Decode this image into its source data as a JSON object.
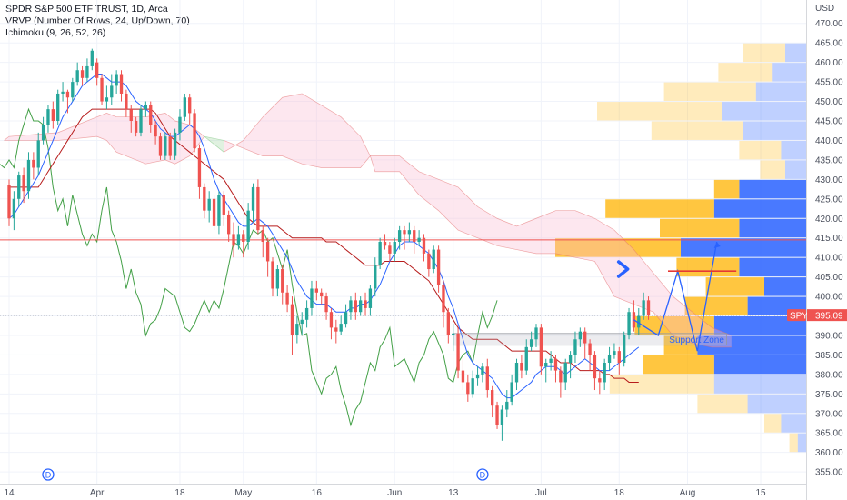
{
  "header": {
    "symbol_line": "SPDR S&P 500 ETF TRUST, 1D, Arca",
    "indicator_vrvp": "VRVP (Number Of Rows, 24, Up/Down, 70)",
    "indicator_ichimoku": "Ichimoku (9, 26, 52, 26)"
  },
  "colors": {
    "up": "#26a69a",
    "down": "#ef5350",
    "tenkan": "#2962ff",
    "kijun": "#b71c1c",
    "chikou": "#43a047",
    "cloud_bull": "#a5d6a7",
    "cloud_bear": "#f8bbd0",
    "vp_up": "#2962ff",
    "vp_down": "#ffb300",
    "arrow": "#2962ff",
    "price_line": "#ef5350",
    "current_price_tag": "#ef5350"
  },
  "chart_data": {
    "type": "candlestick",
    "currency_label": "USD",
    "ylim": [
      352,
      476
    ],
    "y_ticks": [
      355,
      360,
      365,
      370,
      375,
      380,
      385,
      390,
      395,
      400,
      405,
      410,
      415,
      420,
      425,
      430,
      435,
      440,
      445,
      450,
      455,
      460,
      465,
      470
    ],
    "x_ticks": [
      {
        "label": "14",
        "day": 0
      },
      {
        "label": "Apr",
        "day": 18
      },
      {
        "label": "18",
        "day": 35
      },
      {
        "label": "May",
        "day": 48
      },
      {
        "label": "16",
        "day": 63
      },
      {
        "label": "Jun",
        "day": 79
      },
      {
        "label": "13",
        "day": 91
      },
      {
        "label": "Jul",
        "day": 109
      },
      {
        "label": "18",
        "day": 125
      },
      {
        "label": "Aug",
        "day": 139
      },
      {
        "label": "15",
        "day": 154
      }
    ],
    "dividend_markers": [
      {
        "label": "D",
        "day": 8
      },
      {
        "label": "D",
        "day": 97
      }
    ],
    "current_price": {
      "symbol": "SPY",
      "value": "395.09"
    },
    "horizontal_line": 414.5,
    "support_zone": {
      "label": "Support Zone",
      "top": 390.5,
      "bottom": 387.5,
      "start_day": 91,
      "end_day": 147
    },
    "projected_path": [
      [
        128,
        394
      ],
      [
        133,
        390
      ],
      [
        137,
        406.5
      ],
      [
        141,
        386
      ],
      [
        145,
        414
      ]
    ],
    "resistance_segment": {
      "value": 406.5,
      "start_day": 135,
      "end_day": 149
    },
    "arrow_marker": {
      "day": 126,
      "value": 407
    },
    "candles": [
      [
        428.5,
        420,
        430,
        418
      ],
      [
        420,
        425,
        427,
        417
      ],
      [
        425,
        431,
        432,
        423
      ],
      [
        431,
        427,
        433,
        424
      ],
      [
        427,
        435,
        437,
        425
      ],
      [
        435,
        433,
        437,
        430
      ],
      [
        433,
        440,
        442,
        431
      ],
      [
        440,
        444,
        446,
        439
      ],
      [
        444,
        448,
        449,
        442
      ],
      [
        448,
        445,
        450,
        443
      ],
      [
        445,
        452,
        453,
        444
      ],
      [
        452,
        452.5,
        455,
        450
      ],
      [
        452.5,
        451,
        453,
        447
      ],
      [
        451,
        455,
        456,
        450
      ],
      [
        455,
        458,
        460,
        454
      ],
      [
        458,
        456,
        459,
        454
      ],
      [
        456,
        459,
        461,
        455
      ],
      [
        459,
        463,
        463.5,
        458
      ],
      [
        460,
        456,
        461,
        454
      ],
      [
        456,
        450,
        457,
        449
      ],
      [
        450,
        451,
        454,
        448
      ],
      [
        451,
        454,
        457,
        449
      ],
      [
        454,
        457,
        458,
        452
      ],
      [
        457,
        452,
        458,
        450
      ],
      [
        452,
        448,
        453,
        446
      ],
      [
        448,
        445,
        449,
        442
      ],
      [
        445,
        442,
        446,
        441
      ],
      [
        442,
        448,
        449,
        441
      ],
      [
        448,
        449,
        450,
        446
      ],
      [
        449,
        444,
        450,
        442
      ],
      [
        444,
        441,
        445,
        439
      ],
      [
        441,
        436,
        442,
        435
      ],
      [
        436,
        441,
        442,
        435
      ],
      [
        441,
        436,
        442,
        435
      ],
      [
        436,
        442,
        443,
        435
      ],
      [
        442,
        446,
        448,
        440
      ],
      [
        446,
        451,
        452,
        445
      ],
      [
        451,
        447,
        452,
        444
      ],
      [
        447,
        438,
        448,
        437
      ],
      [
        438,
        428,
        439,
        425
      ],
      [
        428,
        422,
        429,
        420
      ],
      [
        422,
        425,
        427,
        419
      ],
      [
        425,
        418,
        426,
        417
      ],
      [
        418,
        426,
        427,
        416
      ],
      [
        426,
        421,
        427,
        418
      ],
      [
        421,
        416,
        422,
        414
      ],
      [
        416,
        413,
        419,
        410
      ],
      [
        413,
        416,
        418,
        412
      ],
      [
        416,
        414,
        417,
        410
      ],
      [
        414,
        422,
        424,
        412
      ],
      [
        422,
        428,
        429,
        419
      ],
      [
        428,
        417,
        430,
        416
      ],
      [
        417,
        414,
        418,
        410
      ],
      [
        414,
        409,
        415,
        405
      ],
      [
        409,
        402,
        410,
        400
      ],
      [
        402,
        407,
        408,
        400
      ],
      [
        407,
        401,
        408,
        398
      ],
      [
        401,
        398,
        403,
        396
      ],
      [
        398,
        390,
        400,
        385
      ],
      [
        390,
        393,
        395,
        388
      ],
      [
        393,
        394,
        396,
        390
      ],
      [
        394,
        397,
        399,
        392
      ],
      [
        397,
        402,
        404,
        395
      ],
      [
        402,
        401,
        404,
        399
      ],
      [
        401,
        400,
        402,
        398
      ],
      [
        400,
        396,
        401,
        394
      ],
      [
        396,
        392,
        397,
        389
      ],
      [
        392,
        391,
        394,
        388
      ],
      [
        391,
        393,
        395,
        390
      ],
      [
        393,
        396,
        398,
        392
      ],
      [
        396,
        399,
        400,
        394
      ],
      [
        399,
        396,
        401,
        394
      ],
      [
        396,
        399,
        400,
        395
      ],
      [
        399,
        397,
        401,
        395
      ],
      [
        397,
        402,
        403,
        395
      ],
      [
        402,
        408,
        410,
        400
      ],
      [
        408,
        414,
        415,
        407
      ],
      [
        414,
        413,
        416,
        412
      ],
      [
        413,
        411,
        414,
        409
      ],
      [
        411,
        414,
        415,
        409
      ],
      [
        414,
        417,
        418,
        412
      ],
      [
        417,
        416,
        418,
        412
      ],
      [
        416,
        417,
        419,
        414
      ],
      [
        417,
        414,
        418,
        411
      ],
      [
        414,
        415,
        417,
        413
      ],
      [
        415,
        411,
        416,
        409
      ],
      [
        411,
        407,
        412,
        405
      ],
      [
        407,
        412,
        413,
        406
      ],
      [
        412,
        403,
        413,
        401
      ],
      [
        403,
        396,
        404,
        392
      ],
      [
        396,
        390,
        397,
        388
      ],
      [
        390,
        390.5,
        393,
        386
      ],
      [
        390.5,
        381,
        392,
        379
      ],
      [
        381,
        378,
        384,
        376
      ],
      [
        378,
        375,
        380,
        373
      ],
      [
        375,
        379,
        381,
        374
      ],
      [
        379,
        380,
        382,
        377
      ],
      [
        380,
        382,
        383,
        378
      ],
      [
        382,
        376,
        384,
        374
      ],
      [
        376,
        372,
        377,
        369
      ],
      [
        372,
        367,
        373,
        366
      ],
      [
        367,
        371,
        372,
        363
      ],
      [
        371,
        373,
        376,
        369
      ],
      [
        373,
        378,
        380,
        372
      ],
      [
        378,
        383,
        384,
        376
      ],
      [
        383,
        381,
        385,
        379
      ],
      [
        381,
        387,
        389,
        380
      ],
      [
        387,
        389,
        391,
        386
      ],
      [
        389,
        392,
        393,
        387
      ],
      [
        392,
        382,
        393,
        380
      ],
      [
        382,
        383,
        384,
        378
      ],
      [
        383,
        384,
        386,
        381
      ],
      [
        384,
        381,
        385,
        378
      ],
      [
        381,
        378,
        382,
        374
      ],
      [
        378,
        383,
        384,
        376
      ],
      [
        383,
        385,
        386,
        379
      ],
      [
        385,
        389,
        391,
        383
      ],
      [
        389,
        391,
        392,
        387
      ],
      [
        391,
        388,
        392,
        384
      ],
      [
        388,
        385,
        389,
        381
      ],
      [
        385,
        379,
        386,
        376
      ],
      [
        379,
        378,
        381,
        375
      ],
      [
        378,
        383,
        384,
        376
      ],
      [
        383,
        385,
        387,
        381
      ],
      [
        385,
        386,
        388,
        384
      ],
      [
        386,
        383,
        387,
        380
      ],
      [
        383,
        390,
        391,
        382
      ],
      [
        390,
        396,
        397,
        389
      ],
      [
        396,
        392,
        399,
        391
      ],
      [
        392,
        395,
        397,
        390
      ],
      [
        395,
        399,
        401,
        394
      ],
      [
        399,
        395.09,
        400,
        394
      ]
    ],
    "tenkan": [
      420,
      421,
      423,
      425,
      427,
      429,
      431,
      434,
      437,
      440,
      443,
      446,
      448,
      450,
      452,
      454,
      455,
      456,
      457,
      457,
      456,
      455,
      455,
      455,
      454,
      452,
      450,
      449,
      448,
      447,
      445,
      443,
      442,
      441,
      441,
      442,
      443,
      444,
      443,
      441,
      438,
      434,
      430,
      427,
      425,
      423,
      421,
      419,
      418,
      418,
      419,
      420,
      419,
      418,
      416,
      414,
      412,
      410,
      407,
      404,
      402,
      400,
      399,
      398,
      398,
      398,
      397,
      396,
      396,
      396,
      397,
      397,
      398,
      398,
      399,
      401,
      403,
      406,
      409,
      411,
      413,
      414,
      414,
      414,
      413,
      412,
      411,
      409,
      407,
      404,
      400,
      397,
      393,
      389,
      385,
      383,
      382,
      381,
      380,
      379,
      377,
      375,
      374,
      374,
      375,
      376,
      377,
      378,
      380,
      381,
      382,
      382,
      382,
      381,
      380,
      381,
      382,
      383,
      384,
      383,
      382,
      381,
      381,
      381,
      382,
      383,
      384,
      385,
      386,
      387
    ],
    "kijun": [
      428,
      428,
      428,
      428,
      428,
      428,
      428,
      430,
      432,
      434,
      436,
      438,
      440,
      442,
      444,
      446,
      447,
      448,
      448,
      448,
      448,
      448,
      448,
      448,
      448,
      448,
      448,
      448,
      448,
      448,
      447,
      445,
      443,
      441,
      440,
      439,
      438,
      437,
      436,
      435,
      434,
      433,
      432,
      431,
      430,
      428,
      426,
      424,
      422,
      420,
      419,
      418,
      418,
      418,
      418,
      418,
      417,
      416,
      415,
      415,
      415,
      415,
      415,
      415,
      415,
      414,
      414,
      414,
      413,
      412,
      411,
      410,
      409,
      408,
      408,
      408,
      408,
      409,
      409,
      409,
      409,
      409,
      408,
      407,
      406,
      405,
      404,
      402,
      400,
      398,
      396,
      394,
      392,
      391,
      390,
      389,
      389,
      389,
      389,
      389,
      389,
      388,
      387,
      386,
      386,
      386,
      386,
      386,
      386,
      386,
      386,
      385,
      384,
      383,
      383,
      383,
      382,
      381,
      381,
      381,
      381,
      381,
      380,
      380,
      379,
      379,
      379,
      378,
      378,
      378
    ],
    "chikou": [
      430,
      432,
      434,
      433,
      435,
      433,
      440,
      444,
      448,
      445,
      445,
      444,
      438,
      428,
      422,
      425,
      418,
      426,
      421,
      416,
      413,
      416,
      414,
      422,
      428,
      417,
      414,
      409,
      402,
      407,
      401,
      398,
      390,
      393,
      394,
      397,
      402,
      401,
      400,
      396,
      392,
      391,
      393,
      396,
      399,
      396,
      399,
      397,
      402,
      408,
      414,
      413,
      411,
      414,
      417,
      416,
      417,
      414,
      415,
      411,
      407,
      412,
      403,
      396,
      390,
      390.5,
      381,
      378,
      375,
      379,
      380,
      382,
      376,
      372,
      367,
      371,
      373,
      378,
      383,
      381,
      387,
      389,
      392,
      382,
      383,
      384,
      381,
      378,
      383,
      385,
      389,
      391,
      388,
      385,
      379,
      378,
      383,
      385,
      386,
      383,
      390,
      396,
      392,
      395,
      399
    ],
    "cloud": [
      [
        -1,
        440,
        440
      ],
      [
        0,
        441,
        440
      ],
      [
        10,
        442,
        440
      ],
      [
        18,
        446,
        441
      ],
      [
        20,
        447,
        440
      ],
      [
        22,
        446,
        437
      ],
      [
        28,
        446,
        434
      ],
      [
        32,
        447,
        435
      ],
      [
        34,
        445,
        434
      ],
      [
        37,
        444,
        436
      ],
      [
        40,
        441,
        441
      ],
      [
        44,
        437,
        440
      ],
      [
        48,
        440,
        438
      ],
      [
        52,
        446,
        436
      ],
      [
        56,
        451,
        436
      ],
      [
        60,
        452,
        434
      ],
      [
        64,
        449,
        433
      ],
      [
        68,
        446,
        433
      ],
      [
        72,
        441,
        433
      ],
      [
        74,
        436,
        436
      ],
      [
        75,
        436,
        432
      ],
      [
        80,
        436,
        432
      ],
      [
        84,
        432,
        426
      ],
      [
        88,
        430,
        422
      ],
      [
        92,
        428,
        417
      ],
      [
        96,
        423,
        415
      ],
      [
        100,
        420,
        413
      ],
      [
        104,
        418,
        412
      ],
      [
        108,
        420,
        411
      ],
      [
        112,
        422,
        411
      ],
      [
        116,
        422,
        410
      ],
      [
        120,
        420,
        409
      ],
      [
        124,
        417,
        400
      ],
      [
        128,
        412,
        398
      ],
      [
        132,
        406,
        396
      ],
      [
        136,
        400,
        390
      ],
      [
        140,
        396,
        388
      ],
      [
        144,
        392,
        387
      ],
      [
        148,
        390,
        387
      ]
    ],
    "volume_profile": [
      {
        "price": 462.5,
        "up": 5,
        "down": 10,
        "faded": true
      },
      {
        "price": 457.5,
        "up": 8,
        "down": 13,
        "faded": true
      },
      {
        "price": 452.5,
        "up": 12,
        "down": 22,
        "faded": true
      },
      {
        "price": 447.5,
        "up": 20,
        "down": 30,
        "faded": true
      },
      {
        "price": 442.5,
        "up": 15,
        "down": 22,
        "faded": true
      },
      {
        "price": 437.5,
        "up": 6,
        "down": 10,
        "faded": true
      },
      {
        "price": 432.5,
        "up": 5,
        "down": 6,
        "faded": true
      },
      {
        "price": 427.5,
        "up": 16,
        "down": 6,
        "faded": false
      },
      {
        "price": 422.5,
        "up": 22,
        "down": 26,
        "faded": false
      },
      {
        "price": 417.5,
        "up": 16,
        "down": 19,
        "faded": false
      },
      {
        "price": 412.5,
        "up": 30,
        "down": 30,
        "faded": false
      },
      {
        "price": 407.5,
        "up": 16,
        "down": 15,
        "faded": false
      },
      {
        "price": 402.5,
        "up": 10,
        "down": 14,
        "faded": false
      },
      {
        "price": 397.5,
        "up": 14,
        "down": 15,
        "faded": false
      },
      {
        "price": 392.5,
        "up": 22,
        "down": 19,
        "faded": false
      },
      {
        "price": 387.5,
        "up": 26,
        "down": 8,
        "faded": false
      },
      {
        "price": 382.5,
        "up": 22,
        "down": 17,
        "faded": false
      },
      {
        "price": 377.5,
        "up": 22,
        "down": 25,
        "faded": true
      },
      {
        "price": 372.5,
        "up": 14,
        "down": 12,
        "faded": true
      },
      {
        "price": 367.5,
        "up": 6,
        "down": 4,
        "faded": true
      },
      {
        "price": 362.5,
        "up": 2,
        "down": 2,
        "faded": true
      }
    ]
  }
}
